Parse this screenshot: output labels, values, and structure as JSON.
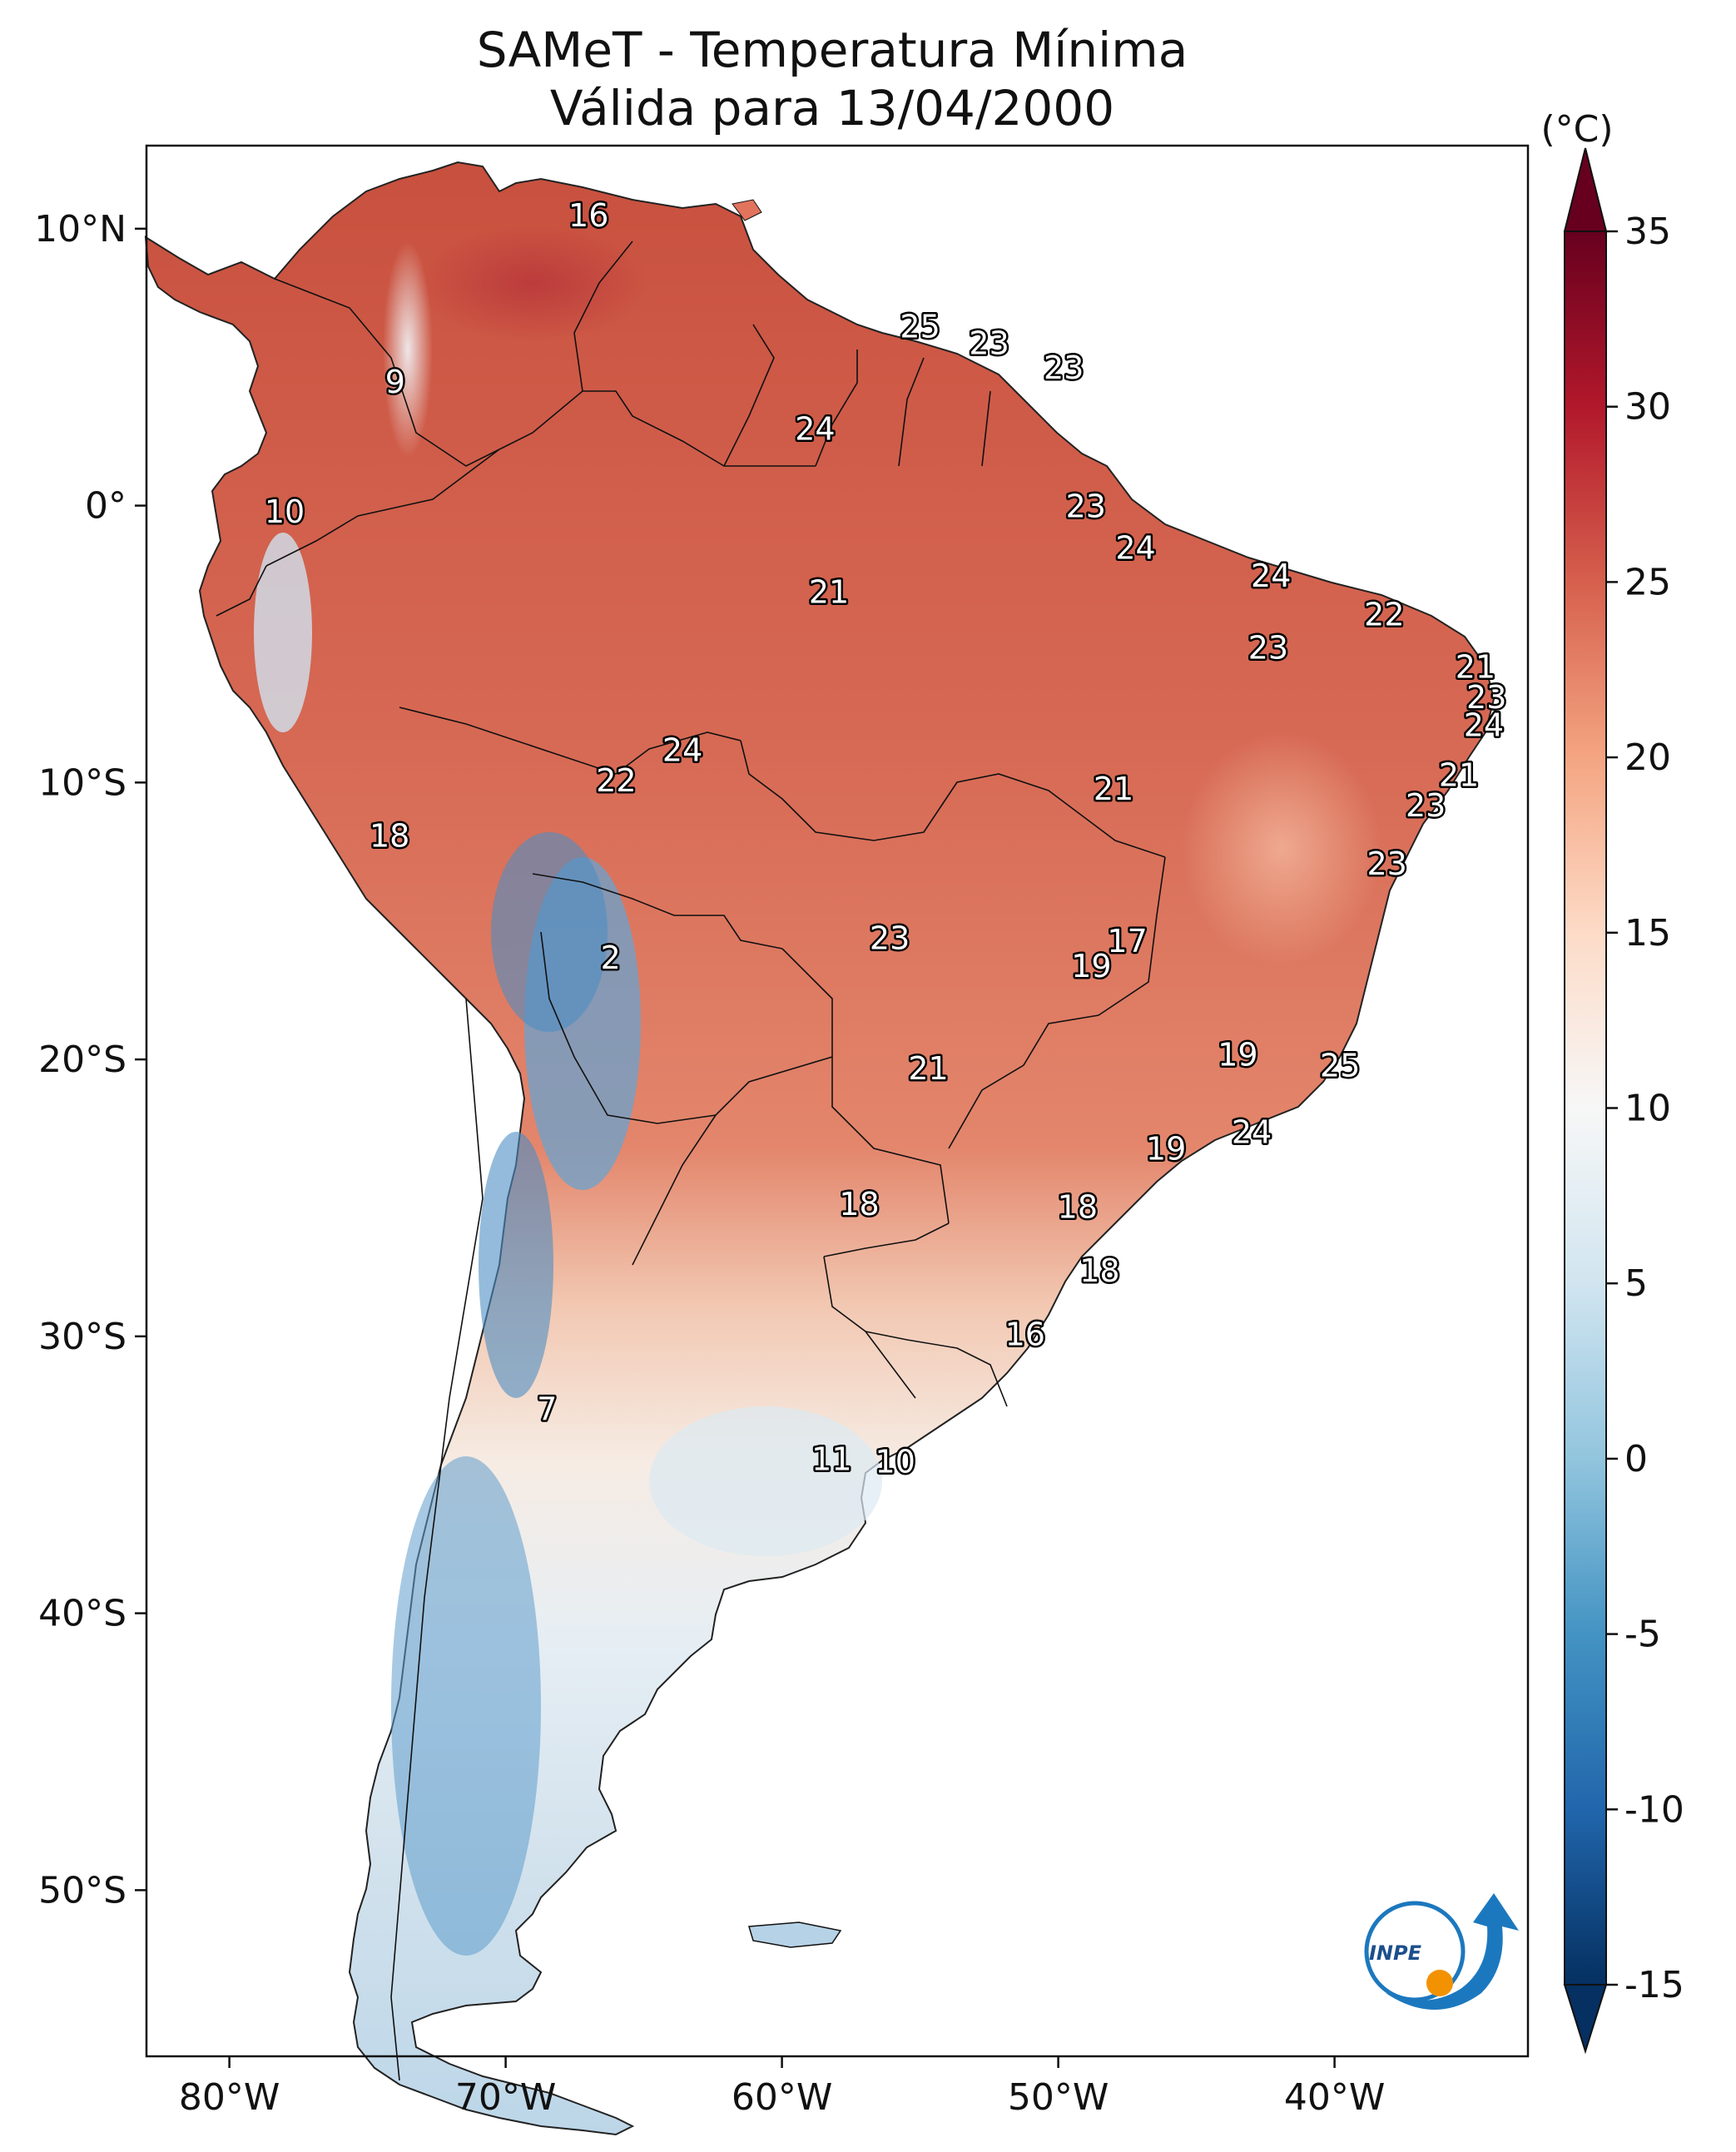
{
  "title": {
    "line1": "SAMeT - Temperatura Mínima",
    "line2": "Válida para 13/04/2000"
  },
  "colorbar": {
    "unit": "(°C)",
    "ticks": [
      "35",
      "30",
      "25",
      "20",
      "15",
      "10",
      "5",
      "0",
      "-5",
      "-10",
      "-15"
    ],
    "vmin": -15,
    "vmax": 35,
    "colors": [
      "#053061",
      "#2166ac",
      "#4393c3",
      "#92c5de",
      "#d1e5f0",
      "#f7f7f7",
      "#fddbc7",
      "#f4a582",
      "#d6604d",
      "#b2182b",
      "#67001f"
    ]
  },
  "axes": {
    "lon_labels": [
      "80°W",
      "70°W",
      "60°W",
      "50°W",
      "40°W"
    ],
    "lon_values": [
      -80,
      -70,
      -60,
      -50,
      -40
    ],
    "lat_labels": [
      "10°N",
      "0°",
      "10°S",
      "20°S",
      "30°S",
      "40°S",
      "50°S"
    ],
    "lat_values": [
      10,
      0,
      -10,
      -20,
      -30,
      -40,
      -50
    ],
    "lon_range": [
      -83,
      -33
    ],
    "lat_range": [
      -56,
      13
    ]
  },
  "map_labels": [
    {
      "text": "16",
      "lon": -67,
      "lat": 10.5
    },
    {
      "text": "25",
      "lon": -55,
      "lat": 6.5
    },
    {
      "text": "23",
      "lon": -52.5,
      "lat": 5.9
    },
    {
      "text": "23",
      "lon": -49.8,
      "lat": 5
    },
    {
      "text": "9",
      "lon": -74,
      "lat": 4.5
    },
    {
      "text": "24",
      "lon": -58.8,
      "lat": 2.8
    },
    {
      "text": "10",
      "lon": -78,
      "lat": -0.2
    },
    {
      "text": "23",
      "lon": -49,
      "lat": 0
    },
    {
      "text": "24",
      "lon": -47.2,
      "lat": -1.5
    },
    {
      "text": "24",
      "lon": -42.3,
      "lat": -2.5
    },
    {
      "text": "21",
      "lon": -58.3,
      "lat": -3.1
    },
    {
      "text": "22",
      "lon": -38.2,
      "lat": -3.9
    },
    {
      "text": "23",
      "lon": -42.4,
      "lat": -5.1
    },
    {
      "text": "21",
      "lon": -34.9,
      "lat": -5.8
    },
    {
      "text": "23",
      "lon": -34.5,
      "lat": -6.9
    },
    {
      "text": "24",
      "lon": -34.6,
      "lat": -7.9
    },
    {
      "text": "24",
      "lon": -63.6,
      "lat": -8.8
    },
    {
      "text": "21",
      "lon": -35.5,
      "lat": -9.7
    },
    {
      "text": "22",
      "lon": -66,
      "lat": -9.9
    },
    {
      "text": "21",
      "lon": -48,
      "lat": -10.2
    },
    {
      "text": "23",
      "lon": -36.7,
      "lat": -10.8
    },
    {
      "text": "18",
      "lon": -74.2,
      "lat": -11.9
    },
    {
      "text": "23",
      "lon": -38.1,
      "lat": -12.9
    },
    {
      "text": "23",
      "lon": -56.1,
      "lat": -15.6
    },
    {
      "text": "17",
      "lon": -47.5,
      "lat": -15.7
    },
    {
      "text": "2",
      "lon": -66.2,
      "lat": -16.3
    },
    {
      "text": "19",
      "lon": -48.8,
      "lat": -16.6
    },
    {
      "text": "19",
      "lon": -43.5,
      "lat": -19.8
    },
    {
      "text": "25",
      "lon": -39.8,
      "lat": -20.2
    },
    {
      "text": "21",
      "lon": -54.7,
      "lat": -20.3
    },
    {
      "text": "24",
      "lon": -43,
      "lat": -22.6
    },
    {
      "text": "19",
      "lon": -46.1,
      "lat": -23.2
    },
    {
      "text": "18",
      "lon": -57.2,
      "lat": -25.2
    },
    {
      "text": "18",
      "lon": -49.3,
      "lat": -25.3
    },
    {
      "text": "18",
      "lon": -48.5,
      "lat": -27.6
    },
    {
      "text": "16",
      "lon": -51.2,
      "lat": -29.9
    },
    {
      "text": "7",
      "lon": -68.5,
      "lat": -32.6
    },
    {
      "text": "11",
      "lon": -58.2,
      "lat": -34.4
    },
    {
      "text": "10",
      "lon": -55.9,
      "lat": -34.5
    }
  ],
  "logo": {
    "text": "INPE"
  }
}
